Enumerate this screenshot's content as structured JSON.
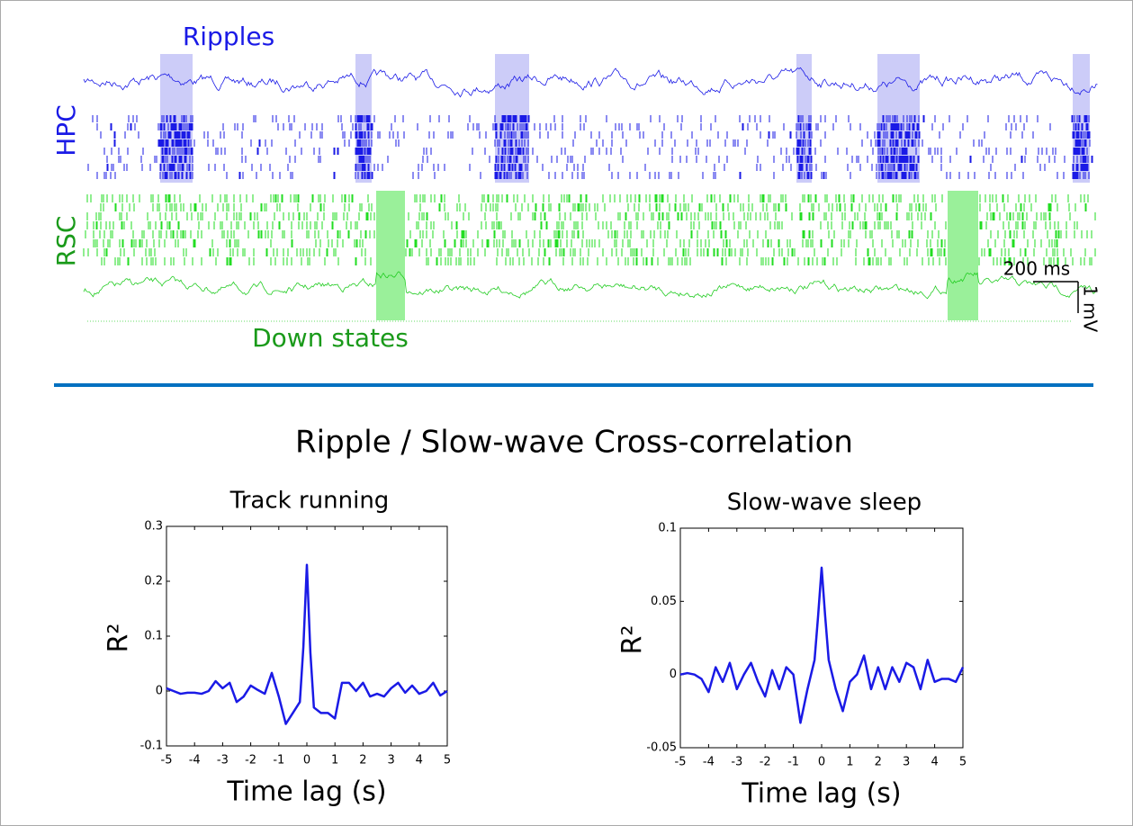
{
  "title": "Ripple / Slow-wave Cross-correlation",
  "top_panel": {
    "ripples_label": "Ripples",
    "hpc_label": "HPC",
    "rsc_label": "RSC",
    "down_states_label": "Down states",
    "time_scale": "200 ms",
    "voltage_scale": "1 mV"
  },
  "chart_data": [
    {
      "type": "line",
      "title": "Track running",
      "x_label": "Time lag (s)",
      "y_label": "R²",
      "color": "#1a1ae6",
      "xlim": [
        -5,
        5
      ],
      "xticks": [
        -5,
        -4,
        -3,
        -2,
        -1,
        0,
        1,
        2,
        3,
        4,
        5
      ],
      "ylim": [
        -0.1,
        0.3
      ],
      "yticks": [
        -0.1,
        0,
        0.1,
        0.2,
        0.3
      ],
      "x": [
        -5,
        -4.75,
        -4.5,
        -4.25,
        -4,
        -3.75,
        -3.5,
        -3.25,
        -3,
        -2.75,
        -2.5,
        -2.25,
        -2,
        -1.75,
        -1.5,
        -1.25,
        -1,
        -0.75,
        -0.5,
        -0.25,
        -0.125,
        0,
        0.125,
        0.25,
        0.5,
        0.75,
        1,
        1.25,
        1.5,
        1.75,
        2,
        2.25,
        2.5,
        2.75,
        3,
        3.25,
        3.5,
        3.75,
        4,
        4.25,
        4.5,
        4.75,
        5
      ],
      "values": [
        0.005,
        0,
        -0.005,
        -0.003,
        -0.003,
        -0.005,
        0,
        0.018,
        0.005,
        0.015,
        -0.02,
        -0.01,
        0.01,
        0.002,
        -0.005,
        0.033,
        -0.01,
        -0.06,
        -0.04,
        -0.02,
        0.08,
        0.23,
        0.07,
        -0.03,
        -0.04,
        -0.04,
        -0.05,
        0.015,
        0.015,
        0,
        0.015,
        -0.01,
        -0.005,
        -0.01,
        0.005,
        0.015,
        -0.003,
        0.01,
        -0.005,
        0,
        0.015,
        -0.008,
        0
      ]
    },
    {
      "type": "line",
      "title": "Slow-wave sleep",
      "x_label": "Time lag (s)",
      "y_label": "R²",
      "color": "#1a1ae6",
      "xlim": [
        -5,
        5
      ],
      "xticks": [
        -5,
        -4,
        -3,
        -2,
        -1,
        0,
        1,
        2,
        3,
        4,
        5
      ],
      "ylim": [
        -0.05,
        0.1
      ],
      "yticks": [
        -0.05,
        0,
        0.05,
        0.1
      ],
      "x": [
        -5,
        -4.75,
        -4.5,
        -4.25,
        -4,
        -3.75,
        -3.5,
        -3.25,
        -3,
        -2.75,
        -2.5,
        -2.25,
        -2,
        -1.75,
        -1.5,
        -1.25,
        -1,
        -0.75,
        -0.5,
        -0.25,
        -0.125,
        0,
        0.125,
        0.25,
        0.5,
        0.75,
        1,
        1.25,
        1.5,
        1.75,
        2,
        2.25,
        2.5,
        2.75,
        3,
        3.25,
        3.5,
        3.75,
        4,
        4.25,
        4.5,
        4.75,
        5
      ],
      "values": [
        0,
        0.001,
        0,
        -0.003,
        -0.012,
        0.005,
        -0.005,
        0.008,
        -0.01,
        0,
        0.008,
        -0.005,
        -0.015,
        0.003,
        -0.01,
        0.005,
        0,
        -0.033,
        -0.01,
        0.01,
        0.04,
        0.073,
        0.04,
        0.01,
        -0.01,
        -0.025,
        -0.005,
        0,
        0.013,
        -0.01,
        0.005,
        -0.01,
        0.005,
        -0.005,
        0.008,
        0.005,
        -0.01,
        0.01,
        -0.005,
        -0.003,
        -0.003,
        -0.005,
        0.005
      ]
    }
  ]
}
